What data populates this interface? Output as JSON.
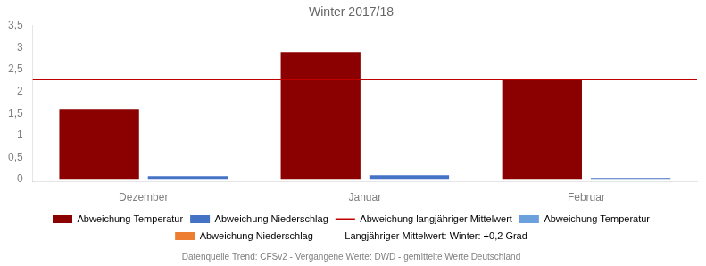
{
  "chart_data": {
    "type": "bar",
    "title": "Winter 2017/18",
    "categories": [
      "Dezember",
      "Januar",
      "Februar"
    ],
    "series": [
      {
        "name": "Abweichung Temperatur",
        "color": "#8B0000",
        "values": [
          1.6,
          2.9,
          2.27
        ]
      },
      {
        "name": "Abweichung Niederschlag",
        "color": "#4472C4",
        "values": [
          0.08,
          0.1,
          0.04
        ]
      }
    ],
    "reference_lines": [
      {
        "name": "Abweichung langjähriger Mittelwert",
        "color": "#C00000",
        "value": 2.27
      }
    ],
    "extra_legend_entries": [
      {
        "name": "Abweichung Temperatur",
        "color": "#6CA0DC"
      },
      {
        "name": "Abweichung Niederschlag",
        "color": "#ED7D31"
      },
      {
        "name": "Langjähriger Mittelwert: Winter: +0,2 Grad"
      }
    ],
    "footnote": "Datenquelle Trend: CFSv2 - Vergangene Werte: DWD - gemittelte Werte Deutschland",
    "ylim": [
      -0.05,
      3.5
    ],
    "yticks": [
      0,
      {
        "value": 0.5,
        "label": "0,5"
      },
      1,
      {
        "value": 1.5,
        "label": "1,5"
      },
      2,
      {
        "value": 2.5,
        "label": "2,5"
      },
      3,
      {
        "value": 3.5,
        "label": "3,5"
      }
    ],
    "grid": false,
    "legend": "bottom"
  }
}
